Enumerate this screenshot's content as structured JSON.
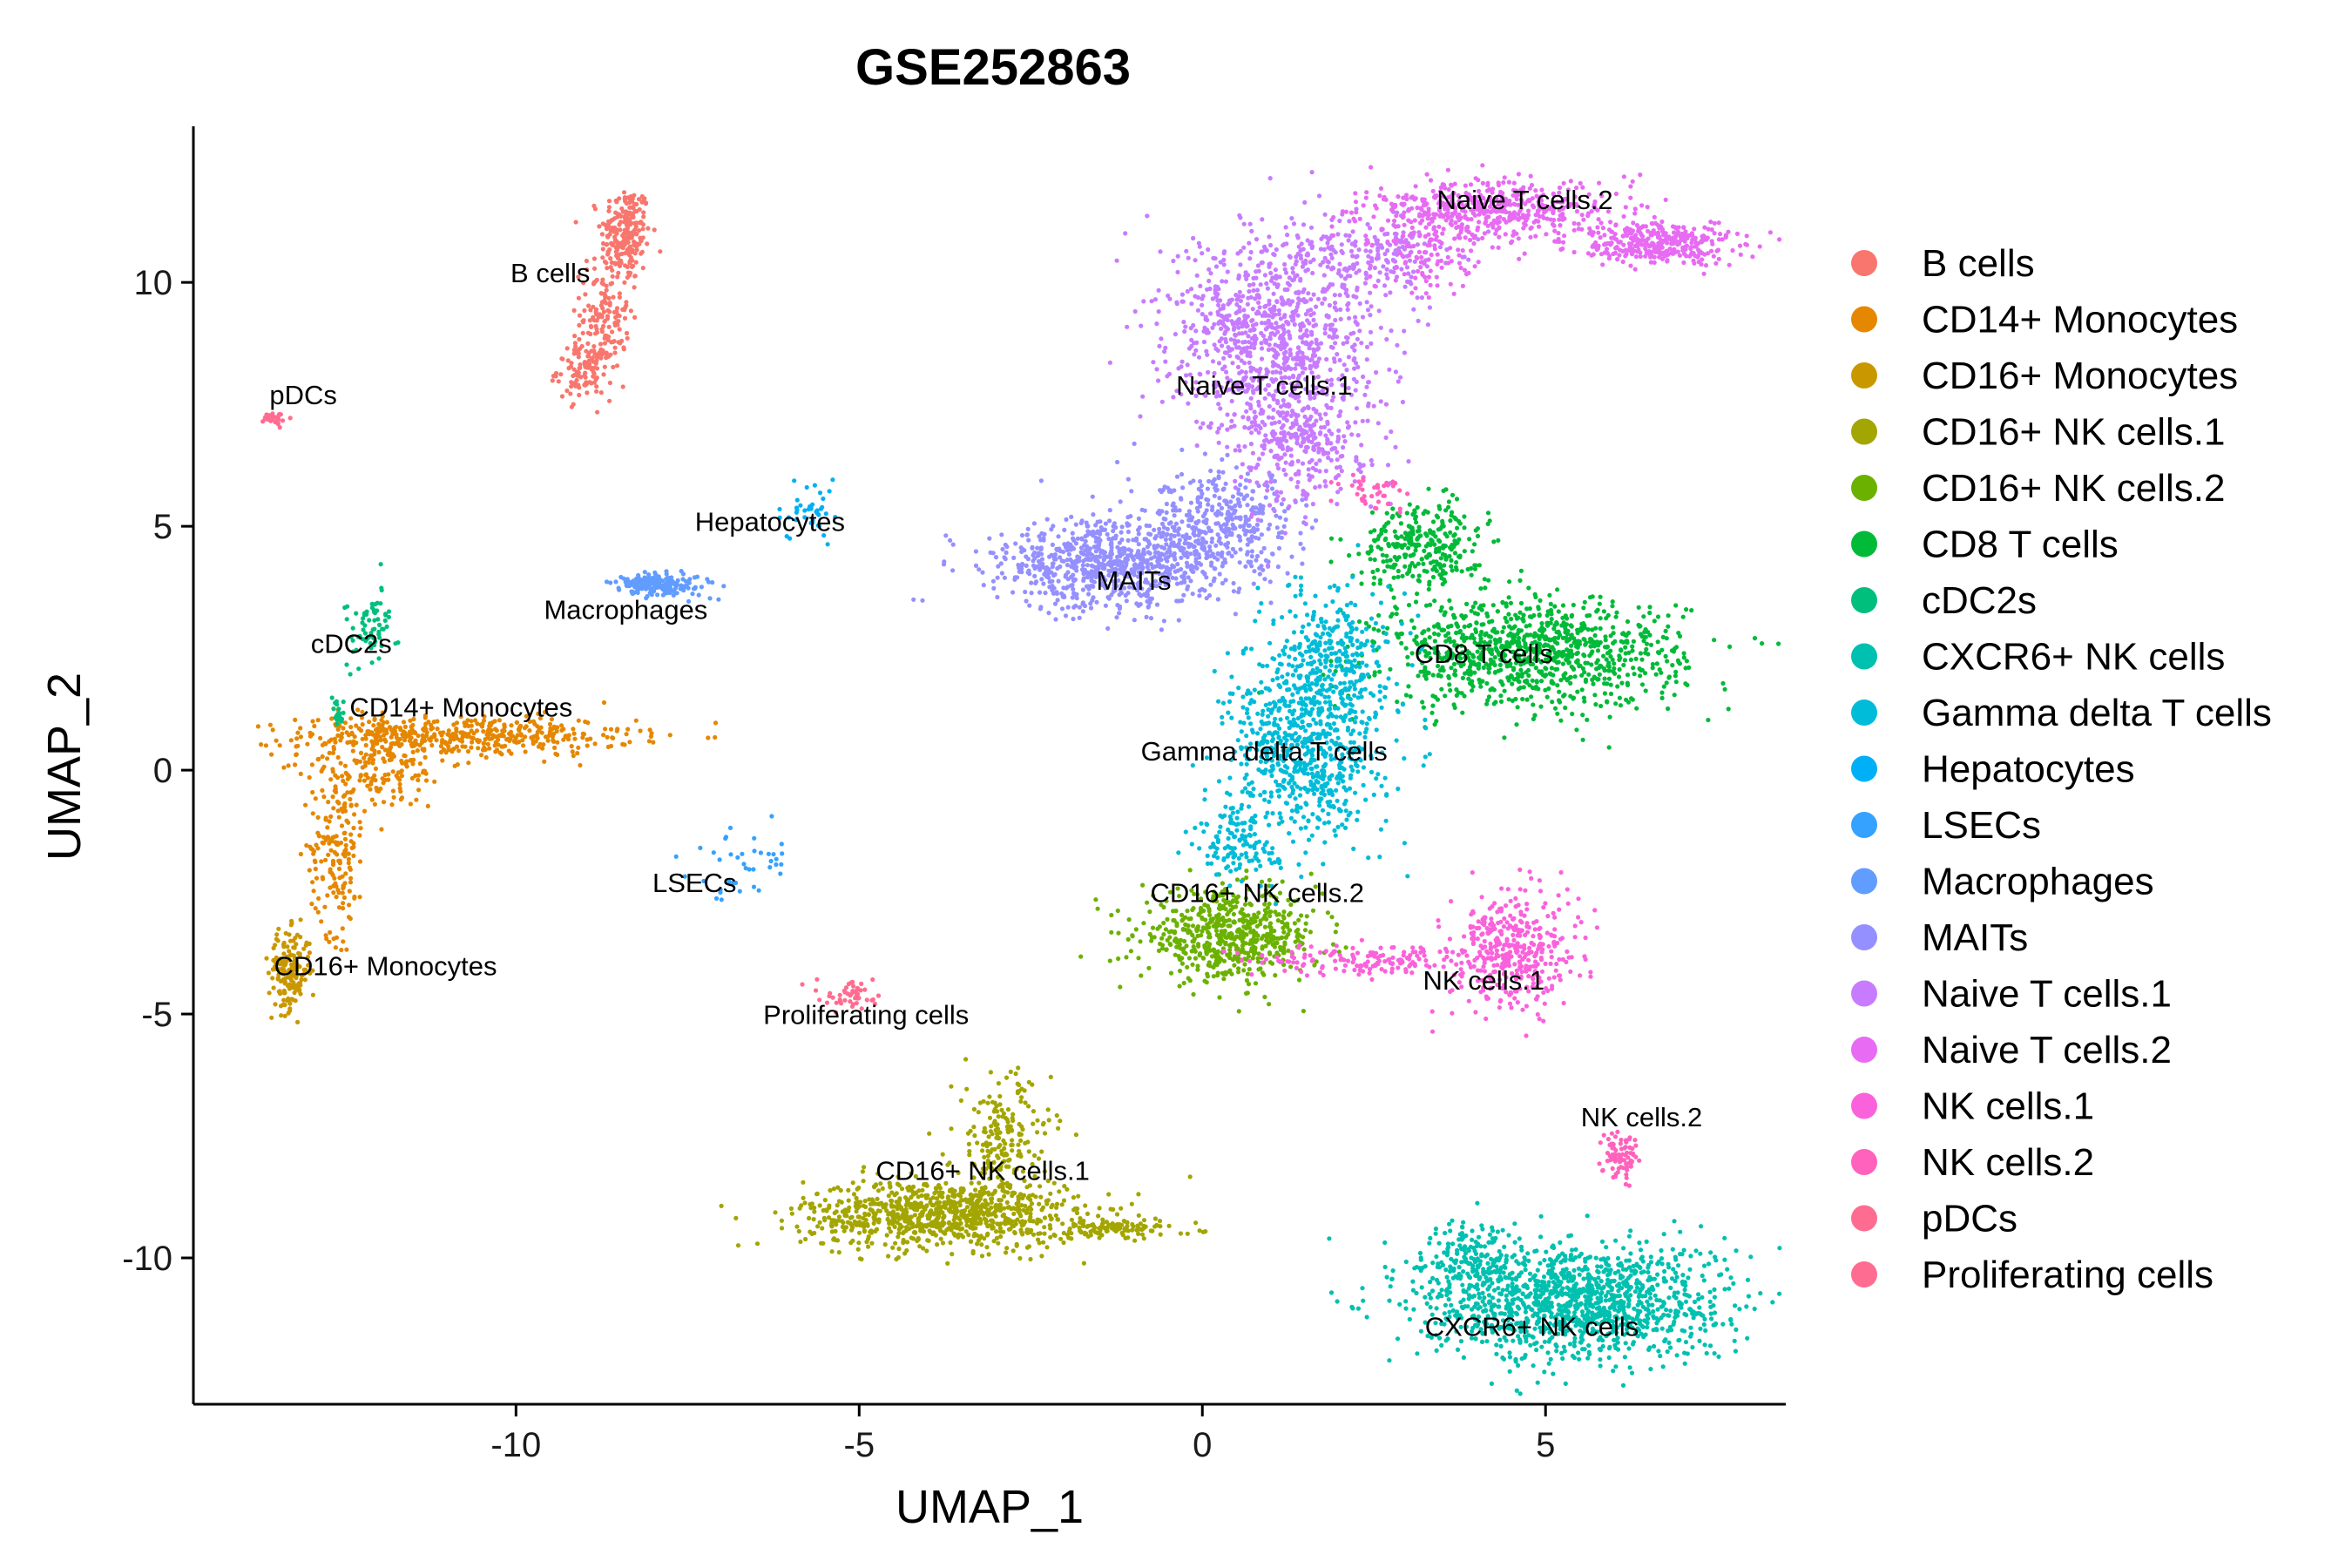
{
  "chart_data": {
    "type": "scatter",
    "title": "GSE252863",
    "xlabel": "UMAP_1",
    "ylabel": "UMAP_2",
    "xlim": [
      -14.7,
      8.5
    ],
    "ylim": [
      -13.0,
      13.2
    ],
    "xticks": [
      -10,
      -5,
      0,
      5
    ],
    "yticks": [
      10,
      5,
      0,
      -5,
      -10
    ],
    "xtick_labels": [
      "-10",
      "-5",
      "0",
      "5"
    ],
    "ytick_labels": [
      "10",
      "5",
      "0",
      "-5",
      "-10"
    ],
    "grid": false,
    "legend_position": "right",
    "series": [
      {
        "name": "B cells",
        "color": "#F8766D",
        "label": "B cells",
        "label_x": -9.5,
        "label_y": 10.0,
        "blobs": [
          {
            "cx": -8.4,
            "cy": 11.0,
            "sx": 0.18,
            "sy": 0.5,
            "n": 220
          },
          {
            "cx": -8.7,
            "cy": 9.4,
            "sx": 0.18,
            "sy": 0.6,
            "n": 140
          },
          {
            "cx": -9.0,
            "cy": 8.2,
            "sx": 0.2,
            "sy": 0.3,
            "n": 120
          }
        ]
      },
      {
        "name": "CD14+ Monocytes",
        "color": "#E58700",
        "label": "CD14+ Monocytes",
        "label_x": -10.8,
        "label_y": 1.1,
        "blobs": [
          {
            "cx": -10.7,
            "cy": 0.7,
            "sx": 1.2,
            "sy": 0.2,
            "n": 420
          },
          {
            "cx": -12.0,
            "cy": 0.2,
            "sx": 0.5,
            "sy": 0.5,
            "n": 200
          },
          {
            "cx": -12.6,
            "cy": -1.6,
            "sx": 0.2,
            "sy": 0.9,
            "n": 180
          }
        ]
      },
      {
        "name": "CD16+ Monocytes",
        "color": "#C99800",
        "label": "CD16+ Monocytes",
        "label_x": -11.9,
        "label_y": -4.2,
        "blobs": [
          {
            "cx": -13.3,
            "cy": -4.1,
            "sx": 0.15,
            "sy": 0.4,
            "n": 180
          }
        ]
      },
      {
        "name": "CD16+ NK cells.1",
        "color": "#A3A500",
        "label": "CD16+ NK cells.1",
        "label_x": -3.2,
        "label_y": -8.4,
        "blobs": [
          {
            "cx": -3.8,
            "cy": -9.1,
            "sx": 1.0,
            "sy": 0.35,
            "n": 900
          },
          {
            "cx": -2.9,
            "cy": -7.6,
            "sx": 0.35,
            "sy": 0.7,
            "n": 200
          },
          {
            "cx": -1.3,
            "cy": -9.4,
            "sx": 0.6,
            "sy": 0.1,
            "n": 110
          }
        ]
      },
      {
        "name": "CD16+ NK cells.2",
        "color": "#6BB100",
        "label": "CD16+ NK cells.2",
        "label_x": 0.8,
        "label_y": -2.7,
        "blobs": [
          {
            "cx": 0.4,
            "cy": -3.4,
            "sx": 0.65,
            "sy": 0.45,
            "n": 600
          }
        ]
      },
      {
        "name": "CD8 T cells",
        "color": "#00BA38",
        "label": "CD8 T cells",
        "label_x": 4.1,
        "label_y": 2.2,
        "blobs": [
          {
            "cx": 4.8,
            "cy": 2.4,
            "sx": 1.1,
            "sy": 0.55,
            "n": 1000
          },
          {
            "cx": 3.2,
            "cy": 4.6,
            "sx": 0.45,
            "sy": 0.45,
            "n": 300
          }
        ]
      },
      {
        "name": "cDC2s",
        "color": "#00BF7D",
        "label": "cDC2s",
        "label_x": -12.4,
        "label_y": 2.4,
        "blobs": [
          {
            "cx": -12.1,
            "cy": 2.9,
            "sx": 0.18,
            "sy": 0.4,
            "n": 70
          },
          {
            "cx": -12.6,
            "cy": 1.2,
            "sx": 0.05,
            "sy": 0.15,
            "n": 20
          }
        ]
      },
      {
        "name": "CXCR6+ NK cells",
        "color": "#00C0AF",
        "label": "CXCR6+ NK cells",
        "label_x": 4.8,
        "label_y": -11.6,
        "blobs": [
          {
            "cx": 5.4,
            "cy": -10.9,
            "sx": 1.1,
            "sy": 0.6,
            "n": 1300
          },
          {
            "cx": 4.0,
            "cy": -10.0,
            "sx": 0.4,
            "sy": 0.4,
            "n": 150
          }
        ]
      },
      {
        "name": "Gamma delta T cells",
        "color": "#00BCD8",
        "label": "Gamma delta T cells",
        "label_x": 0.9,
        "label_y": 0.2,
        "blobs": [
          {
            "cx": 1.5,
            "cy": 0.4,
            "sx": 0.55,
            "sy": 0.9,
            "n": 700
          },
          {
            "cx": 1.9,
            "cy": 2.4,
            "sx": 0.4,
            "sy": 0.7,
            "n": 300
          },
          {
            "cx": 0.5,
            "cy": -1.5,
            "sx": 0.3,
            "sy": 0.4,
            "n": 120
          }
        ]
      },
      {
        "name": "Hepatocytes",
        "color": "#00B0F6",
        "label": "Hepatocytes",
        "label_x": -6.3,
        "label_y": 4.9,
        "blobs": [
          {
            "cx": -5.7,
            "cy": 5.3,
            "sx": 0.2,
            "sy": 0.3,
            "n": 40
          }
        ]
      },
      {
        "name": "LSECs",
        "color": "#35A2FF",
        "label": "LSECs",
        "label_x": -7.4,
        "label_y": -2.5,
        "blobs": [
          {
            "cx": -6.6,
            "cy": -1.9,
            "sx": 0.4,
            "sy": 0.35,
            "n": 40
          }
        ]
      },
      {
        "name": "Macrophages",
        "color": "#619CFF",
        "label": "Macrophages",
        "label_x": -8.4,
        "label_y": 3.1,
        "blobs": [
          {
            "cx": -7.9,
            "cy": 3.8,
            "sx": 0.35,
            "sy": 0.12,
            "n": 180
          }
        ]
      },
      {
        "name": "MAITs",
        "color": "#9590FF",
        "label": "MAITs",
        "label_x": -1.0,
        "label_y": 3.7,
        "blobs": [
          {
            "cx": -1.3,
            "cy": 4.2,
            "sx": 0.9,
            "sy": 0.45,
            "n": 800
          },
          {
            "cx": 0.3,
            "cy": 5.1,
            "sx": 0.6,
            "sy": 0.5,
            "n": 350
          }
        ]
      },
      {
        "name": "Naive T cells.1",
        "color": "#C77CFF",
        "label": "Naive T cells.1",
        "label_x": 0.9,
        "label_y": 7.7,
        "blobs": [
          {
            "cx": 1.0,
            "cy": 9.0,
            "sx": 0.75,
            "sy": 1.0,
            "n": 900
          },
          {
            "cx": 1.5,
            "cy": 6.8,
            "sx": 0.5,
            "sy": 0.7,
            "n": 350
          },
          {
            "cx": 2.5,
            "cy": 10.6,
            "sx": 0.6,
            "sy": 0.4,
            "n": 200
          }
        ]
      },
      {
        "name": "Naive T cells.2",
        "color": "#E76BF3",
        "label": "Naive T cells.2",
        "label_x": 4.7,
        "label_y": 11.5,
        "blobs": [
          {
            "cx": 4.2,
            "cy": 11.5,
            "sx": 0.9,
            "sy": 0.3,
            "n": 500
          },
          {
            "cx": 6.6,
            "cy": 10.8,
            "sx": 0.6,
            "sy": 0.2,
            "n": 350
          },
          {
            "cx": 3.3,
            "cy": 10.5,
            "sx": 0.4,
            "sy": 0.4,
            "n": 100
          }
        ]
      },
      {
        "name": "NK cells.1",
        "color": "#FA62DB",
        "label": "NK cells.1",
        "label_x": 4.1,
        "label_y": -4.5,
        "blobs": [
          {
            "cx": 4.5,
            "cy": -3.7,
            "sx": 0.45,
            "sy": 0.6,
            "n": 400
          },
          {
            "cx": 2.4,
            "cy": -3.9,
            "sx": 0.8,
            "sy": 0.15,
            "n": 150
          }
        ]
      },
      {
        "name": "NK cells.2",
        "color": "#FF62BC",
        "label": "NK cells.2",
        "label_x": 6.4,
        "label_y": -7.3,
        "blobs": [
          {
            "cx": 6.1,
            "cy": -7.9,
            "sx": 0.12,
            "sy": 0.25,
            "n": 80
          },
          {
            "cx": 2.5,
            "cy": 5.7,
            "sx": 0.25,
            "sy": 0.2,
            "n": 40
          }
        ]
      },
      {
        "name": "pDCs",
        "color": "#FF6C91",
        "label": "pDCs",
        "label_x": -13.1,
        "label_y": 7.5,
        "blobs": [
          {
            "cx": -13.5,
            "cy": 7.2,
            "sx": 0.1,
            "sy": 0.08,
            "n": 30
          }
        ]
      },
      {
        "name": "Proliferating cells",
        "color": "#FF6C91",
        "label": "Proliferating cells",
        "label_x": -4.9,
        "label_y": -5.2,
        "blobs": [
          {
            "cx": -5.1,
            "cy": -4.6,
            "sx": 0.2,
            "sy": 0.15,
            "n": 50
          }
        ]
      }
    ],
    "legend_colors": [
      "#F8766D",
      "#E58700",
      "#C99800",
      "#A3A500",
      "#6BB100",
      "#00BA38",
      "#00BF7D",
      "#00C0AF",
      "#00BCD8",
      "#00B0F6",
      "#35A2FF",
      "#619CFF",
      "#9590FF",
      "#C77CFF",
      "#E76BF3",
      "#FA62DB",
      "#FF62BC",
      "#FF6C91",
      "#FF6C91"
    ]
  }
}
